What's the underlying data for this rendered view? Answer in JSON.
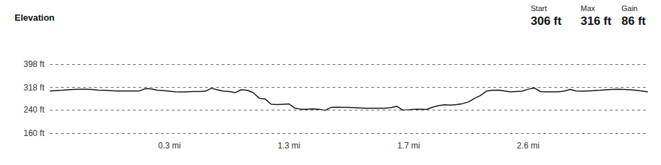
{
  "chart_data": {
    "type": "line",
    "title": "Elevation",
    "annotations": [
      {
        "label": "Start",
        "value": "306 ft"
      },
      {
        "label": "Max",
        "value": "316 ft"
      },
      {
        "label": "Gain",
        "value": "86 ft"
      }
    ],
    "categories": [
      null,
      null,
      null,
      null,
      null,
      null,
      null,
      null,
      null,
      null,
      null,
      null,
      null,
      null,
      null,
      null,
      null,
      null,
      null,
      null,
      "0.3 mi",
      null,
      null,
      null,
      null,
      null,
      null,
      null,
      null,
      null,
      null,
      null,
      null,
      null,
      null,
      null,
      null,
      null,
      null,
      null,
      "1.3 mi",
      null,
      null,
      null,
      null,
      null,
      null,
      null,
      null,
      null,
      null,
      null,
      null,
      null,
      null,
      null,
      null,
      null,
      null,
      null,
      "1.7 mi",
      null,
      null,
      null,
      null,
      null,
      null,
      null,
      null,
      null,
      null,
      null,
      null,
      null,
      null,
      null,
      null,
      null,
      null,
      null,
      "2.6 mi",
      null,
      null,
      null,
      null,
      null,
      null,
      null,
      null,
      null,
      null,
      null,
      null,
      null,
      null,
      null,
      null,
      null,
      null,
      null,
      null
    ],
    "values": [
      306,
      307,
      308,
      310,
      311,
      312,
      312,
      311,
      309,
      308,
      307,
      306,
      306,
      306,
      306,
      306,
      314,
      313,
      308,
      307,
      305,
      303,
      302,
      303,
      304,
      304,
      305,
      315,
      310,
      305,
      304,
      300,
      310,
      308,
      300,
      281,
      278,
      260,
      259,
      260,
      261,
      246,
      243,
      243,
      244,
      243,
      239,
      249,
      250,
      249,
      249,
      248,
      247,
      246,
      246,
      246,
      246,
      248,
      253,
      240,
      241,
      243,
      243,
      242,
      250,
      255,
      258,
      257,
      259,
      262,
      268,
      280,
      290,
      305,
      308,
      309,
      306,
      303,
      304,
      305,
      312,
      316,
      304,
      303,
      303,
      303,
      305,
      311,
      306,
      305,
      306,
      307,
      308,
      310,
      311,
      312,
      311,
      310,
      308,
      306,
      303
    ],
    "color": "#111111",
    "ylim": [
      160,
      398
    ],
    "yticks": [
      {
        "value": 160,
        "label": "160 ft"
      },
      {
        "value": 240,
        "label": "240 ft"
      },
      {
        "value": 318,
        "label": "318 ft"
      },
      {
        "value": 398,
        "label": "398 ft"
      }
    ],
    "grid": true,
    "legend": "none"
  }
}
